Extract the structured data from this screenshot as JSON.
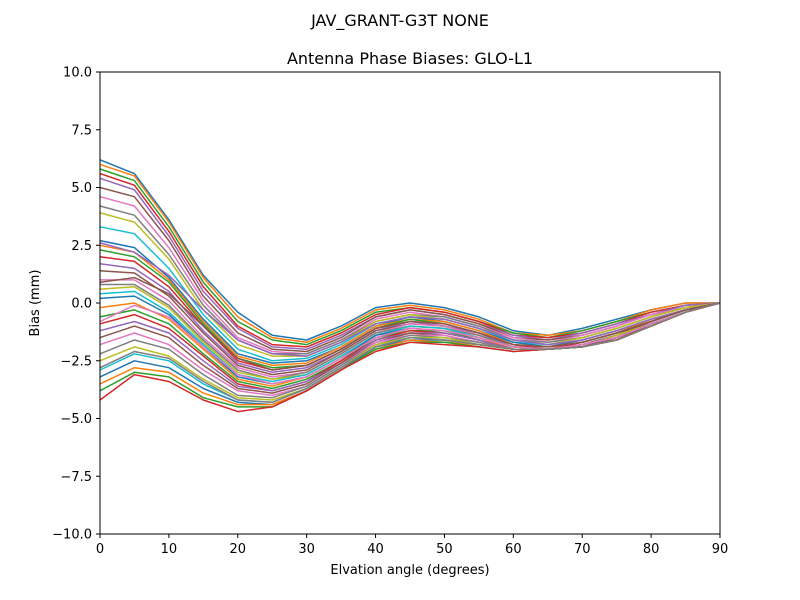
{
  "chart_data": {
    "type": "line",
    "suptitle": "JAV_GRANT-G3T   NONE",
    "title": "Antenna Phase Biases: GLO-L1",
    "xlabel": "Elvation angle (degrees)",
    "ylabel": "Bias (mm)",
    "xlim": [
      0,
      90
    ],
    "ylim": [
      -10,
      10
    ],
    "xticks": [
      0,
      10,
      20,
      30,
      40,
      50,
      60,
      70,
      80,
      90
    ],
    "xtick_labels": [
      "0",
      "10",
      "20",
      "30",
      "40",
      "50",
      "60",
      "70",
      "80",
      "90"
    ],
    "yticks": [
      -10,
      -7.5,
      -5,
      -2.5,
      0,
      2.5,
      5,
      7.5,
      10
    ],
    "ytick_labels": [
      "−10.0",
      "−7.5",
      "−5.0",
      "−2.5",
      "0.0",
      "2.5",
      "5.0",
      "7.5",
      "10.0"
    ],
    "grid": false,
    "legend": "none",
    "palette": [
      "#1f77b4",
      "#ff7f0e",
      "#2ca02c",
      "#d62728",
      "#9467bd",
      "#8c564b",
      "#e377c2",
      "#7f7f7f",
      "#bcbd22",
      "#17becf"
    ],
    "x": [
      0,
      5,
      10,
      15,
      20,
      25,
      30,
      35,
      40,
      45,
      50,
      55,
      60,
      65,
      70,
      75,
      80,
      85,
      90
    ],
    "series": [
      {
        "values": [
          6.2,
          5.6,
          3.6,
          1.2,
          -0.4,
          -1.4,
          -1.6,
          -1.0,
          -0.2,
          0.0,
          -0.2,
          -0.6,
          -1.2,
          -1.4,
          -1.1,
          -0.7,
          -0.3,
          0.0,
          0.0
        ]
      },
      {
        "values": [
          6.0,
          5.5,
          3.5,
          1.1,
          -0.6,
          -1.5,
          -1.7,
          -1.1,
          -0.3,
          -0.1,
          -0.3,
          -0.7,
          -1.3,
          -1.4,
          -1.2,
          -0.8,
          -0.3,
          0.0,
          0.0
        ]
      },
      {
        "values": [
          5.8,
          5.3,
          3.3,
          0.9,
          -0.8,
          -1.6,
          -1.8,
          -1.2,
          -0.4,
          -0.2,
          -0.4,
          -0.8,
          -1.3,
          -1.5,
          -1.2,
          -0.8,
          -0.4,
          -0.1,
          0.0
        ]
      },
      {
        "values": [
          5.6,
          5.1,
          3.1,
          0.7,
          -1.0,
          -1.8,
          -1.9,
          -1.3,
          -0.5,
          -0.2,
          -0.4,
          -0.8,
          -1.4,
          -1.5,
          -1.3,
          -0.9,
          -0.4,
          -0.1,
          0.0
        ]
      },
      {
        "values": [
          5.4,
          4.9,
          2.9,
          0.5,
          -1.1,
          -1.9,
          -2.0,
          -1.4,
          -0.6,
          -0.3,
          -0.5,
          -0.9,
          -1.4,
          -1.6,
          -1.3,
          -0.9,
          -0.5,
          -0.1,
          0.0
        ]
      },
      {
        "values": [
          5.0,
          4.6,
          2.7,
          0.3,
          -1.3,
          -2.0,
          -2.1,
          -1.5,
          -0.6,
          -0.3,
          -0.5,
          -0.9,
          -1.5,
          -1.6,
          -1.4,
          -1.0,
          -0.5,
          -0.2,
          0.0
        ]
      },
      {
        "values": [
          4.6,
          4.2,
          2.4,
          0.1,
          -1.5,
          -2.1,
          -2.2,
          -1.6,
          -0.7,
          -0.4,
          -0.6,
          -1.0,
          -1.5,
          -1.7,
          -1.4,
          -1.0,
          -0.5,
          -0.2,
          0.0
        ]
      },
      {
        "values": [
          4.2,
          3.8,
          2.1,
          -0.1,
          -1.6,
          -2.2,
          -2.2,
          -1.6,
          -0.8,
          -0.5,
          -0.6,
          -1.0,
          -1.6,
          -1.7,
          -1.5,
          -1.1,
          -0.6,
          -0.2,
          0.0
        ]
      },
      {
        "values": [
          3.9,
          3.5,
          1.9,
          -0.3,
          -1.8,
          -2.3,
          -2.3,
          -1.7,
          -0.8,
          -0.5,
          -0.7,
          -1.1,
          -1.6,
          -1.8,
          -1.5,
          -1.1,
          -0.6,
          -0.2,
          0.0
        ]
      },
      {
        "values": [
          3.3,
          3.0,
          1.5,
          -0.5,
          -2.0,
          -2.5,
          -2.4,
          -1.8,
          -0.9,
          -0.6,
          -0.7,
          -1.1,
          -1.7,
          -1.8,
          -1.6,
          -1.2,
          -0.7,
          -0.3,
          0.0
        ]
      },
      {
        "values": [
          2.7,
          2.4,
          1.1,
          -0.7,
          -2.2,
          -2.6,
          -2.5,
          -1.9,
          -1.0,
          -0.6,
          -0.8,
          -1.2,
          -1.7,
          -1.9,
          -1.6,
          -1.2,
          -0.7,
          -0.3,
          0.0
        ]
      },
      {
        "values": [
          2.5,
          2.2,
          1.0,
          -0.8,
          -2.3,
          -2.7,
          -2.6,
          -1.9,
          -1.0,
          -0.7,
          -0.8,
          -1.2,
          -1.8,
          -1.9,
          -1.7,
          -1.3,
          -0.7,
          -0.3,
          0.0
        ]
      },
      {
        "values": [
          2.3,
          2.0,
          0.9,
          -0.9,
          -2.4,
          -2.8,
          -2.7,
          -2.0,
          -1.1,
          -0.7,
          -0.9,
          -1.3,
          -1.8,
          -2.0,
          -1.7,
          -1.3,
          -0.8,
          -0.3,
          0.0
        ]
      },
      {
        "values": [
          2.0,
          1.8,
          0.7,
          -1.0,
          -2.5,
          -2.9,
          -2.7,
          -2.0,
          -1.1,
          -0.8,
          -0.9,
          -1.3,
          -1.8,
          -2.0,
          -1.7,
          -1.3,
          -0.8,
          -0.3,
          0.0
        ]
      },
      {
        "values": [
          1.7,
          1.5,
          0.5,
          -1.2,
          -2.6,
          -3.0,
          -2.8,
          -2.1,
          -1.2,
          -0.8,
          -1.0,
          -1.3,
          -1.9,
          -2.0,
          -1.8,
          -1.4,
          -0.8,
          -0.3,
          0.0
        ]
      },
      {
        "values": [
          1.4,
          1.3,
          0.3,
          -1.3,
          -2.7,
          -3.1,
          -2.9,
          -2.1,
          -1.2,
          -0.9,
          -1.0,
          -1.4,
          -1.9,
          -2.0,
          -1.8,
          -1.4,
          -0.8,
          -0.3,
          0.0
        ]
      },
      {
        "values": [
          1.0,
          1.0,
          0.1,
          -1.5,
          -2.8,
          -3.2,
          -3.0,
          -2.2,
          -1.3,
          -0.9,
          -1.0,
          -1.4,
          -1.9,
          -2.0,
          -1.8,
          -1.4,
          -0.9,
          -0.4,
          0.0
        ]
      },
      {
        "values": [
          0.8,
          0.8,
          -0.1,
          -1.6,
          -2.9,
          -3.3,
          -3.0,
          -2.2,
          -1.3,
          -1.0,
          -1.1,
          -1.4,
          -1.9,
          -2.0,
          -1.8,
          -1.4,
          -0.9,
          -0.4,
          0.0
        ]
      },
      {
        "values": [
          0.6,
          0.7,
          -0.2,
          -1.7,
          -3.0,
          -3.3,
          -3.1,
          -2.3,
          -1.4,
          -1.0,
          -1.1,
          -1.5,
          -1.9,
          -2.0,
          -1.9,
          -1.4,
          -0.9,
          -0.4,
          0.0
        ]
      },
      {
        "values": [
          0.4,
          0.5,
          -0.4,
          -1.8,
          -3.1,
          -3.4,
          -3.1,
          -2.3,
          -1.4,
          -1.0,
          -1.1,
          -1.5,
          -2.0,
          -2.0,
          -1.9,
          -1.5,
          -0.9,
          -0.4,
          0.0
        ]
      },
      {
        "values": [
          0.2,
          0.3,
          -0.5,
          -1.9,
          -3.2,
          -3.5,
          -3.2,
          -2.4,
          -1.4,
          -1.1,
          -1.2,
          -1.5,
          -2.0,
          -2.0,
          -1.9,
          -1.5,
          -0.9,
          -0.4,
          0.0
        ]
      },
      {
        "values": [
          -0.2,
          0.0,
          -0.7,
          -2.0,
          -3.3,
          -3.6,
          -3.2,
          -2.4,
          -1.5,
          -1.1,
          -1.2,
          -1.5,
          -2.0,
          -2.0,
          -1.9,
          -1.5,
          -0.9,
          -0.4,
          0.0
        ]
      },
      {
        "values": [
          -0.6,
          -0.3,
          -0.9,
          -2.2,
          -3.4,
          -3.7,
          -3.3,
          -2.5,
          -1.5,
          -1.2,
          -1.2,
          -1.6,
          -2.0,
          -2.0,
          -1.9,
          -1.5,
          -0.9,
          -0.4,
          0.0
        ]
      },
      {
        "values": [
          -0.9,
          -0.5,
          -1.1,
          -2.3,
          -3.5,
          -3.8,
          -3.4,
          -2.5,
          -1.6,
          -1.2,
          -1.3,
          -1.6,
          -2.0,
          -2.0,
          -1.9,
          -1.5,
          -1.0,
          -0.4,
          0.0
        ]
      },
      {
        "values": [
          -1.2,
          -0.8,
          -1.3,
          -2.5,
          -3.6,
          -3.8,
          -3.4,
          -2.6,
          -1.6,
          -1.3,
          -1.3,
          -1.6,
          -2.0,
          -2.0,
          -1.9,
          -1.5,
          -1.0,
          -0.4,
          0.0
        ]
      },
      {
        "values": [
          -1.5,
          -1.0,
          -1.5,
          -2.7,
          -3.7,
          -3.9,
          -3.5,
          -2.6,
          -1.7,
          -1.3,
          -1.4,
          -1.7,
          -2.0,
          -2.0,
          -1.9,
          -1.5,
          -1.0,
          -0.4,
          0.0
        ]
      },
      {
        "values": [
          -1.8,
          -1.3,
          -1.8,
          -2.9,
          -3.8,
          -4.0,
          -3.6,
          -2.7,
          -1.7,
          -1.4,
          -1.4,
          -1.7,
          -2.0,
          -2.0,
          -1.9,
          -1.6,
          -1.0,
          -0.4,
          0.0
        ]
      },
      {
        "values": [
          -2.2,
          -1.6,
          -2.0,
          -3.1,
          -4.0,
          -4.1,
          -3.6,
          -2.7,
          -1.8,
          -1.4,
          -1.5,
          -1.7,
          -2.0,
          -2.0,
          -1.9,
          -1.6,
          -1.0,
          -0.4,
          0.0
        ]
      },
      {
        "values": [
          -2.5,
          -1.9,
          -2.3,
          -3.3,
          -4.1,
          -4.2,
          -3.7,
          -2.8,
          -1.8,
          -1.5,
          -1.5,
          -1.8,
          -2.0,
          -2.0,
          -1.9,
          -1.6,
          -1.0,
          -0.4,
          0.0
        ]
      },
      {
        "values": [
          -2.9,
          -2.2,
          -2.5,
          -3.5,
          -4.2,
          -4.3,
          -3.7,
          -2.8,
          -1.9,
          -1.5,
          -1.6,
          -1.8,
          -2.0,
          -2.0,
          -1.9,
          -1.6,
          -1.0,
          -0.4,
          0.0
        ]
      },
      {
        "values": [
          -3.2,
          -2.5,
          -2.8,
          -3.7,
          -4.3,
          -4.4,
          -3.8,
          -2.9,
          -1.9,
          -1.6,
          -1.6,
          -1.8,
          -2.0,
          -2.0,
          -1.9,
          -1.6,
          -1.0,
          -0.4,
          0.0
        ]
      },
      {
        "values": [
          -3.5,
          -2.8,
          -3.0,
          -3.9,
          -4.4,
          -4.4,
          -3.8,
          -2.9,
          -2.0,
          -1.6,
          -1.7,
          -1.8,
          -2.0,
          -2.0,
          -1.9,
          -1.6,
          -1.0,
          -0.4,
          0.0
        ]
      },
      {
        "values": [
          -3.8,
          -3.0,
          -3.2,
          -4.1,
          -4.5,
          -4.5,
          -3.8,
          -2.9,
          -2.0,
          -1.7,
          -1.7,
          -1.9,
          -2.1,
          -2.0,
          -1.9,
          -1.6,
          -1.0,
          -0.4,
          0.0
        ]
      },
      {
        "values": [
          -4.2,
          -3.1,
          -3.4,
          -4.2,
          -4.7,
          -4.5,
          -3.8,
          -2.9,
          -2.1,
          -1.7,
          -1.8,
          -1.9,
          -2.1,
          -2.0,
          -1.9,
          -1.6,
          -1.0,
          -0.4,
          0.0
        ]
      },
      {
        "values": [
          2.6,
          2.2,
          1.2,
          -0.3,
          -1.6,
          -2.2,
          -2.3,
          -1.7,
          -0.9,
          -0.6,
          -0.7,
          -1.1,
          -1.6,
          -1.8,
          -1.6,
          -1.2,
          -0.7,
          -0.3,
          0.0
        ]
      },
      {
        "values": [
          0.9,
          1.1,
          0.4,
          -1.0,
          -2.4,
          -2.9,
          -2.7,
          -2.0,
          -1.1,
          -0.8,
          -0.9,
          -1.3,
          -1.8,
          -1.9,
          -1.7,
          -1.3,
          -0.8,
          -0.3,
          0.0
        ]
      },
      {
        "values": [
          -0.8,
          -0.1,
          -0.6,
          -1.9,
          -3.1,
          -3.5,
          -3.2,
          -2.4,
          -1.5,
          -1.1,
          -1.2,
          -1.5,
          -1.9,
          -2.0,
          -1.8,
          -1.5,
          -0.9,
          -0.4,
          0.0
        ]
      },
      {
        "values": [
          -2.8,
          -2.1,
          -2.4,
          -3.4,
          -4.2,
          -4.3,
          -3.7,
          -2.8,
          -1.9,
          -1.5,
          -1.6,
          -1.8,
          -2.0,
          -2.0,
          -1.9,
          -1.6,
          -1.0,
          -0.4,
          0.0
        ]
      }
    ]
  }
}
